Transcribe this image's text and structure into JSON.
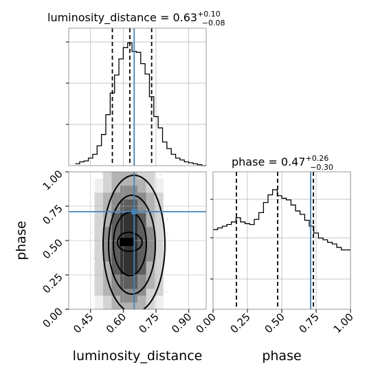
{
  "chart_data": [
    {
      "type": "histogram",
      "panel": "luminosity_distance marginal",
      "title": {
        "prefix": "luminosity_distance = 0.63",
        "sup": "+0.10",
        "sub": "−0.08"
      },
      "xlim": [
        0.35,
        0.98
      ],
      "bin_edges": [
        0.38,
        0.4,
        0.42,
        0.44,
        0.46,
        0.48,
        0.5,
        0.52,
        0.54,
        0.56,
        0.58,
        0.6,
        0.62,
        0.64,
        0.66,
        0.68,
        0.7,
        0.72,
        0.74,
        0.76,
        0.78,
        0.8,
        0.82,
        0.84,
        0.86,
        0.88,
        0.9,
        0.92,
        0.94,
        0.96,
        0.98
      ],
      "counts": [
        2,
        4,
        5,
        8,
        12,
        21,
        33,
        54,
        77,
        96,
        113,
        125,
        130,
        121,
        120,
        108,
        97,
        73,
        52,
        40,
        25,
        18,
        12,
        8,
        6,
        4,
        3,
        2,
        1,
        0
      ],
      "quantiles": [
        0.55,
        0.63,
        0.73
      ],
      "truth": 0.65,
      "grid": true
    },
    {
      "type": "heatmap",
      "panel": "joint luminosity_distance vs phase",
      "xlim": [
        0.35,
        0.98
      ],
      "ylim": [
        0.0,
        1.0
      ],
      "truth": {
        "x": 0.65,
        "y": 0.71
      },
      "xlabel": "luminosity_distance",
      "ylabel": "phase",
      "x_ticks": [
        "0.45",
        "0.60",
        "0.75",
        "0.90"
      ],
      "y_ticks": [
        "0.00",
        "0.25",
        "0.50",
        "0.75",
        "1.00"
      ],
      "density_shades": [
        "#f0f0f0",
        "#d4d4d4",
        "#b3b3b3",
        "#8c8c8c",
        "#5e5e5e",
        "#333333",
        "#000000"
      ],
      "grid": true
    },
    {
      "type": "histogram",
      "panel": "phase marginal",
      "title": {
        "prefix": "phase = 0.47",
        "sup": "+0.26",
        "sub": "−0.30"
      },
      "xlim": [
        0.0,
        1.0
      ],
      "bin_edges": [
        0.0,
        0.033,
        0.067,
        0.1,
        0.133,
        0.167,
        0.2,
        0.233,
        0.267,
        0.3,
        0.333,
        0.367,
        0.4,
        0.433,
        0.467,
        0.5,
        0.533,
        0.567,
        0.6,
        0.633,
        0.667,
        0.7,
        0.733,
        0.767,
        0.8,
        0.833,
        0.867,
        0.9,
        0.933,
        0.967,
        1.0
      ],
      "counts": [
        94,
        96,
        98,
        100,
        103,
        108,
        103,
        101,
        100,
        106,
        114,
        126,
        135,
        141,
        134,
        131,
        129,
        123,
        116,
        112,
        105,
        98,
        90,
        84,
        82,
        79,
        77,
        73,
        70,
        70
      ],
      "quantiles": [
        0.17,
        0.47,
        0.73
      ],
      "truth": 0.71,
      "x_ticks": [
        "0.00",
        "0.25",
        "0.50",
        "0.75",
        "1.00"
      ],
      "xlabel": "phase",
      "grid": true
    }
  ],
  "colors": {
    "truth": "#4682b4",
    "hist": "#000000",
    "grid": "#b0b0b0",
    "frame": "#808080",
    "scatter": "#c8c8c8"
  }
}
